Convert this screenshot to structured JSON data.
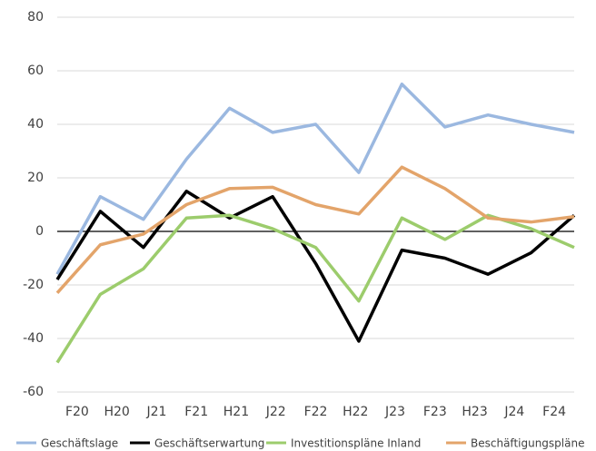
{
  "chart_data": {
    "type": "line",
    "categories": [
      "F20",
      "H20",
      "J21",
      "F21",
      "H21",
      "J22",
      "F22",
      "H22",
      "J23",
      "F23",
      "H23",
      "J24",
      "F24"
    ],
    "series": [
      {
        "name": "Geschäftslage",
        "color": "#9bb8e0",
        "values": [
          -16,
          13,
          4.5,
          27,
          46,
          37,
          40,
          22,
          55,
          39,
          43.5,
          40,
          37
        ]
      },
      {
        "name": "Geschäftserwartung",
        "color": "#000000",
        "values": [
          -18,
          7.5,
          -6,
          15,
          5,
          13,
          -12,
          -41,
          -7,
          -10,
          -16,
          -8,
          6
        ]
      },
      {
        "name": "Investitionspläne Inland",
        "color": "#9ccc6c",
        "values": [
          -49,
          -23.5,
          -14,
          5,
          6,
          1,
          -6,
          -26,
          5,
          -3,
          6,
          1,
          -6
        ]
      },
      {
        "name": "Beschäftigungspläne",
        "color": "#e3a46a",
        "values": [
          -23,
          -5,
          -1,
          10,
          16,
          16.5,
          10,
          6.5,
          24,
          16,
          5,
          3.5,
          5.5
        ]
      }
    ],
    "ylim": [
      -60,
      80
    ],
    "yticks": [
      -60,
      -40,
      -20,
      0,
      20,
      40,
      60,
      80
    ],
    "grid": true,
    "legend": "bottom"
  }
}
